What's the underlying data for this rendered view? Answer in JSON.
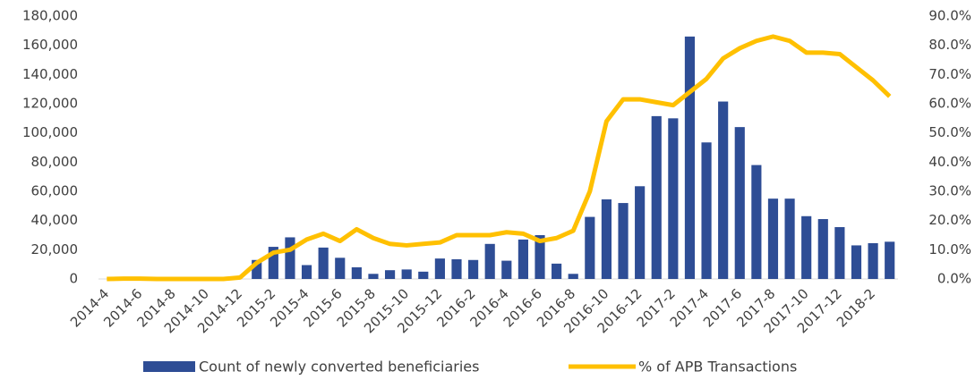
{
  "chart_data": {
    "type": "bar_line",
    "categories": [
      "2014-4",
      null,
      "2014-6",
      null,
      "2014-8",
      null,
      "2014-10",
      null,
      "2014-12",
      null,
      "2015-2",
      null,
      "2015-4",
      null,
      "2015-6",
      null,
      "2015-8",
      null,
      "2015-10",
      null,
      "2015-12",
      null,
      "2016-2",
      null,
      "2016-4",
      null,
      "2016-6",
      null,
      "2016-8",
      null,
      "2016-10",
      null,
      "2016-12",
      null,
      "2017-2",
      null,
      "2017-4",
      null,
      "2017-6",
      null,
      "2017-8",
      null,
      "2017-10",
      null,
      "2017-12",
      null,
      "2018-2",
      null
    ],
    "series": [
      {
        "name": "Count of newly converted beneficiaries",
        "color": "#2e4d95",
        "type": "bar",
        "values": [
          0,
          0,
          0,
          0,
          0,
          0,
          0,
          0,
          0,
          13000,
          22000,
          28500,
          9500,
          21500,
          14500,
          8000,
          3500,
          6000,
          6500,
          5000,
          14000,
          13500,
          13000,
          24000,
          12500,
          27000,
          30000,
          10500,
          3500,
          42500,
          54500,
          52000,
          63500,
          111500,
          110000,
          166000,
          93500,
          121500,
          104000,
          78000,
          55000,
          55000,
          43000,
          41000,
          35500,
          23000,
          24500,
          25500
        ]
      },
      {
        "name": "% of APB Transactions",
        "color": "#ffc000",
        "type": "line",
        "axis": "y2",
        "values": [
          0,
          0.1,
          0.1,
          0,
          0,
          0,
          0,
          0,
          0.5,
          5.5,
          9,
          10,
          13.5,
          15.5,
          13,
          17,
          14,
          12,
          11.5,
          12,
          12.5,
          15,
          15,
          15,
          16,
          15.5,
          13,
          14,
          16.5,
          30,
          54,
          61.5,
          61.5,
          60.5,
          59.5,
          64,
          68.5,
          75.5,
          79,
          81.5,
          83,
          81.5,
          77.5,
          77.5,
          77,
          72.5,
          68,
          62.5
        ]
      }
    ],
    "ylim": [
      0,
      180000
    ],
    "yticks": [
      0,
      {
        "value": 20000,
        "label": "20,000"
      },
      {
        "value": 40000,
        "label": "40,000"
      },
      {
        "value": 60000,
        "label": "60,000"
      },
      {
        "value": 80000,
        "label": "80,000"
      },
      {
        "value": 100000,
        "label": "100,000"
      },
      {
        "value": 120000,
        "label": "120,000"
      },
      {
        "value": 140000,
        "label": "140,000"
      },
      {
        "value": 160000,
        "label": "160,000"
      },
      {
        "value": 180000,
        "label": "180,000"
      }
    ],
    "y2lim": [
      0,
      90
    ],
    "y2ticks": [
      {
        "value": 0,
        "label": "0.0%"
      },
      {
        "value": 10,
        "label": "10.0%"
      },
      {
        "value": 20,
        "label": "20.0%"
      },
      {
        "value": 30,
        "label": "30.0%"
      },
      {
        "value": 40,
        "label": "40.0%"
      },
      {
        "value": 50,
        "label": "50.0%"
      },
      {
        "value": 60,
        "label": "60.0%"
      },
      {
        "value": 70,
        "label": "70.0%"
      },
      {
        "value": 80,
        "label": "80.0%"
      },
      {
        "value": 90,
        "label": "90.0%"
      }
    ],
    "legend": "bottom"
  }
}
